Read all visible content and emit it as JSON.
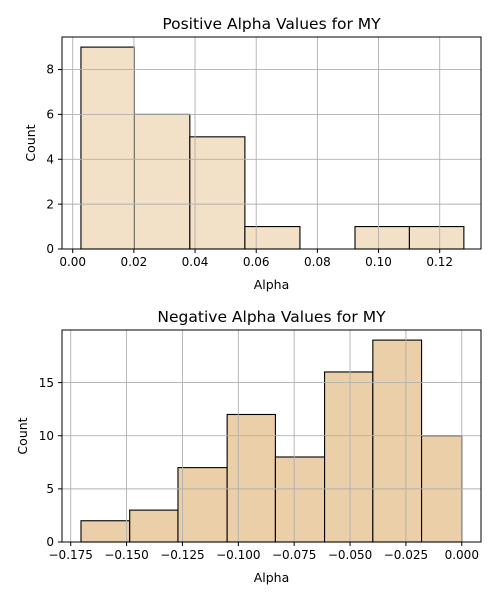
{
  "chart_data": [
    {
      "type": "bar",
      "title": "Positive Alpha Values for MY",
      "xlabel": "Alpha",
      "ylabel": "Count",
      "bar_color": "#f2e0c7",
      "grid": true,
      "xlim": [
        -0.0035,
        0.1335
      ],
      "ylim": [
        0,
        9.45
      ],
      "xticks": [
        0.0,
        0.02,
        0.04,
        0.06,
        0.08,
        0.1,
        0.12
      ],
      "xtick_labels": [
        "0.00",
        "0.02",
        "0.04",
        "0.06",
        "0.08",
        "0.10",
        "0.12"
      ],
      "yticks": [
        0,
        2,
        4,
        6,
        8
      ],
      "ytick_labels": [
        "0",
        "2",
        "4",
        "6",
        "8"
      ],
      "bins": [
        {
          "x0": 0.0027,
          "x1": 0.0201,
          "count": 9
        },
        {
          "x0": 0.0201,
          "x1": 0.0383,
          "count": 6
        },
        {
          "x0": 0.0383,
          "x1": 0.0563,
          "count": 5
        },
        {
          "x0": 0.0563,
          "x1": 0.0743,
          "count": 1
        },
        {
          "x0": 0.0743,
          "x1": 0.0923,
          "count": 0
        },
        {
          "x0": 0.0923,
          "x1": 0.1101,
          "count": 1
        },
        {
          "x0": 0.1101,
          "x1": 0.1279,
          "count": 1
        }
      ]
    },
    {
      "type": "bar",
      "title": "Negative Alpha Values for MY",
      "xlabel": "Alpha",
      "ylabel": "Count",
      "bar_color": "#ebcfa8",
      "grid": true,
      "xlim": [
        -0.1789,
        0.0086
      ],
      "ylim": [
        0,
        19.95
      ],
      "xticks": [
        -0.175,
        -0.15,
        -0.125,
        -0.1,
        -0.075,
        -0.05,
        -0.025,
        0.0
      ],
      "xtick_labels": [
        "−0.175",
        "−0.150",
        "−0.125",
        "−0.100",
        "−0.075",
        "−0.050",
        "−0.025",
        "0.000"
      ],
      "yticks": [
        0,
        5,
        10,
        15
      ],
      "ytick_labels": [
        "0",
        "5",
        "10",
        "15"
      ],
      "bins": [
        {
          "x0": -0.1704,
          "x1": -0.1486,
          "count": 2
        },
        {
          "x0": -0.1486,
          "x1": -0.127,
          "count": 3
        },
        {
          "x0": -0.127,
          "x1": -0.105,
          "count": 7
        },
        {
          "x0": -0.105,
          "x1": -0.0834,
          "count": 12
        },
        {
          "x0": -0.0834,
          "x1": -0.0614,
          "count": 8
        },
        {
          "x0": -0.0614,
          "x1": -0.0398,
          "count": 16
        },
        {
          "x0": -0.0398,
          "x1": -0.018,
          "count": 19
        },
        {
          "x0": -0.018,
          "x1": 0.0,
          "count": 10
        }
      ]
    }
  ]
}
